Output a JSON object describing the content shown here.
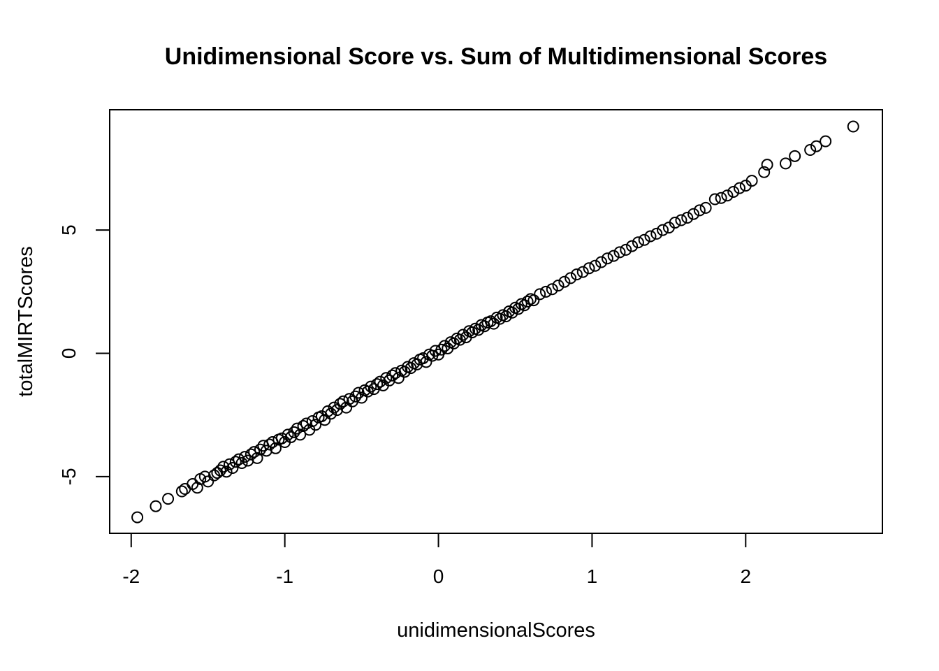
{
  "chart_data": {
    "type": "scatter",
    "title": "Unidimensional Score vs. Sum of Multidimensional Scores",
    "xlabel": "unidimensionalScores",
    "ylabel": "totalMIRTScores",
    "xlim": [
      -2.14,
      2.89
    ],
    "ylim": [
      -7.3,
      9.88
    ],
    "xticks": [
      -2,
      -1,
      0,
      1,
      2
    ],
    "xtick_labels": [
      "-2",
      "-1",
      "0",
      "1",
      "2"
    ],
    "yticks": [
      -5,
      0,
      5
    ],
    "ytick_labels": [
      "-5",
      "0",
      "5"
    ],
    "grid": false,
    "legend": "none",
    "marker": "open-circle",
    "colors": {
      "points": "#000000",
      "frame": "#000000",
      "background": "#ffffff"
    },
    "series": [
      {
        "points": [
          [
            -1.96,
            -6.65
          ],
          [
            -1.84,
            -6.2
          ],
          [
            -1.76,
            -5.9
          ],
          [
            -1.67,
            -5.6
          ],
          [
            -1.65,
            -5.5
          ],
          [
            -1.6,
            -5.3
          ],
          [
            -1.57,
            -5.45
          ],
          [
            -1.55,
            -5.1
          ],
          [
            -1.52,
            -5.0
          ],
          [
            -1.5,
            -5.2
          ],
          [
            -1.46,
            -4.95
          ],
          [
            -1.44,
            -4.85
          ],
          [
            -1.42,
            -4.75
          ],
          [
            -1.4,
            -4.6
          ],
          [
            -1.38,
            -4.8
          ],
          [
            -1.36,
            -4.5
          ],
          [
            -1.34,
            -4.65
          ],
          [
            -1.32,
            -4.4
          ],
          [
            -1.3,
            -4.3
          ],
          [
            -1.28,
            -4.45
          ],
          [
            -1.26,
            -4.2
          ],
          [
            -1.24,
            -4.35
          ],
          [
            -1.22,
            -4.1
          ],
          [
            -1.2,
            -4.0
          ],
          [
            -1.18,
            -4.25
          ],
          [
            -1.16,
            -3.9
          ],
          [
            -1.14,
            -3.75
          ],
          [
            -1.12,
            -3.95
          ],
          [
            -1.1,
            -3.7
          ],
          [
            -1.08,
            -3.6
          ],
          [
            -1.06,
            -3.85
          ],
          [
            -1.04,
            -3.5
          ],
          [
            -1.02,
            -3.45
          ],
          [
            -1.0,
            -3.6
          ],
          [
            -0.98,
            -3.3
          ],
          [
            -0.96,
            -3.4
          ],
          [
            -0.94,
            -3.2
          ],
          [
            -0.92,
            -3.05
          ],
          [
            -0.9,
            -3.3
          ],
          [
            -0.88,
            -2.95
          ],
          [
            -0.86,
            -2.85
          ],
          [
            -0.84,
            -3.1
          ],
          [
            -0.82,
            -2.75
          ],
          [
            -0.8,
            -2.9
          ],
          [
            -0.78,
            -2.6
          ],
          [
            -0.76,
            -2.55
          ],
          [
            -0.74,
            -2.7
          ],
          [
            -0.72,
            -2.35
          ],
          [
            -0.7,
            -2.45
          ],
          [
            -0.68,
            -2.2
          ],
          [
            -0.66,
            -2.3
          ],
          [
            -0.64,
            -2.05
          ],
          [
            -0.62,
            -1.95
          ],
          [
            -0.6,
            -2.2
          ],
          [
            -0.58,
            -1.85
          ],
          [
            -0.56,
            -1.95
          ],
          [
            -0.54,
            -1.75
          ],
          [
            -0.52,
            -1.6
          ],
          [
            -0.5,
            -1.8
          ],
          [
            -0.48,
            -1.5
          ],
          [
            -0.46,
            -1.55
          ],
          [
            -0.44,
            -1.35
          ],
          [
            -0.42,
            -1.45
          ],
          [
            -0.4,
            -1.25
          ],
          [
            -0.38,
            -1.15
          ],
          [
            -0.36,
            -1.3
          ],
          [
            -0.34,
            -1.0
          ],
          [
            -0.32,
            -1.1
          ],
          [
            -0.3,
            -0.9
          ],
          [
            -0.28,
            -0.8
          ],
          [
            -0.26,
            -1.0
          ],
          [
            -0.24,
            -0.7
          ],
          [
            -0.22,
            -0.75
          ],
          [
            -0.2,
            -0.55
          ],
          [
            -0.18,
            -0.6
          ],
          [
            -0.16,
            -0.4
          ],
          [
            -0.14,
            -0.45
          ],
          [
            -0.12,
            -0.25
          ],
          [
            -0.1,
            -0.2
          ],
          [
            -0.08,
            -0.35
          ],
          [
            -0.06,
            -0.05
          ],
          [
            -0.04,
            -0.1
          ],
          [
            -0.02,
            0.1
          ],
          [
            0.0,
            -0.05
          ],
          [
            0.02,
            0.15
          ],
          [
            0.04,
            0.3
          ],
          [
            0.06,
            0.2
          ],
          [
            0.08,
            0.45
          ],
          [
            0.1,
            0.4
          ],
          [
            0.12,
            0.6
          ],
          [
            0.14,
            0.55
          ],
          [
            0.16,
            0.75
          ],
          [
            0.18,
            0.65
          ],
          [
            0.2,
            0.9
          ],
          [
            0.22,
            0.85
          ],
          [
            0.24,
            1.0
          ],
          [
            0.26,
            0.95
          ],
          [
            0.28,
            1.15
          ],
          [
            0.3,
            1.1
          ],
          [
            0.32,
            1.25
          ],
          [
            0.34,
            1.3
          ],
          [
            0.36,
            1.2
          ],
          [
            0.38,
            1.45
          ],
          [
            0.4,
            1.4
          ],
          [
            0.42,
            1.55
          ],
          [
            0.44,
            1.5
          ],
          [
            0.46,
            1.7
          ],
          [
            0.48,
            1.65
          ],
          [
            0.5,
            1.85
          ],
          [
            0.52,
            1.8
          ],
          [
            0.54,
            2.0
          ],
          [
            0.56,
            1.95
          ],
          [
            0.58,
            2.1
          ],
          [
            0.6,
            2.2
          ],
          [
            0.62,
            2.15
          ],
          [
            0.66,
            2.4
          ],
          [
            0.7,
            2.5
          ],
          [
            0.74,
            2.6
          ],
          [
            0.78,
            2.75
          ],
          [
            0.82,
            2.9
          ],
          [
            0.86,
            3.05
          ],
          [
            0.9,
            3.2
          ],
          [
            0.94,
            3.3
          ],
          [
            0.98,
            3.45
          ],
          [
            1.02,
            3.55
          ],
          [
            1.06,
            3.7
          ],
          [
            1.1,
            3.85
          ],
          [
            1.14,
            3.95
          ],
          [
            1.18,
            4.1
          ],
          [
            1.22,
            4.2
          ],
          [
            1.26,
            4.35
          ],
          [
            1.3,
            4.5
          ],
          [
            1.34,
            4.6
          ],
          [
            1.38,
            4.75
          ],
          [
            1.42,
            4.85
          ],
          [
            1.46,
            5.0
          ],
          [
            1.5,
            5.1
          ],
          [
            1.54,
            5.3
          ],
          [
            1.58,
            5.4
          ],
          [
            1.62,
            5.5
          ],
          [
            1.66,
            5.65
          ],
          [
            1.7,
            5.8
          ],
          [
            1.74,
            5.9
          ],
          [
            1.8,
            6.25
          ],
          [
            1.84,
            6.3
          ],
          [
            1.88,
            6.4
          ],
          [
            1.92,
            6.55
          ],
          [
            1.96,
            6.7
          ],
          [
            2.0,
            6.8
          ],
          [
            2.04,
            7.0
          ],
          [
            2.12,
            7.35
          ],
          [
            2.14,
            7.65
          ],
          [
            2.26,
            7.7
          ],
          [
            2.32,
            8.0
          ],
          [
            2.42,
            8.25
          ],
          [
            2.46,
            8.4
          ],
          [
            2.52,
            8.6
          ],
          [
            2.7,
            9.2
          ]
        ]
      }
    ]
  }
}
